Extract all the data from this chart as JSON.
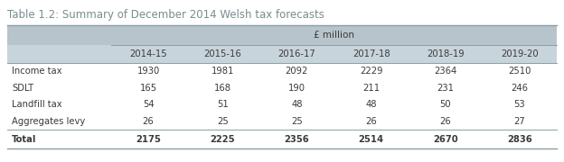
{
  "title": "Table 1.2: Summary of December 2014 Welsh tax forecasts",
  "unit_label": "£ million",
  "columns": [
    "",
    "2014-15",
    "2015-16",
    "2016-17",
    "2017-18",
    "2018-19",
    "2019-20"
  ],
  "rows": [
    [
      "Income tax",
      "1930",
      "1981",
      "2092",
      "2229",
      "2364",
      "2510"
    ],
    [
      "SDLT",
      "165",
      "168",
      "190",
      "211",
      "231",
      "246"
    ],
    [
      "Landfill tax",
      "54",
      "51",
      "48",
      "48",
      "50",
      "53"
    ],
    [
      "Aggregates levy",
      "26",
      "25",
      "25",
      "26",
      "26",
      "27"
    ],
    [
      "Total",
      "2175",
      "2225",
      "2356",
      "2514",
      "2670",
      "2836"
    ]
  ],
  "bg_color": "#f0f0f0",
  "header_bg": "#b8c4cc",
  "header2_bg": "#c8d4db",
  "total_bold": true,
  "title_color": "#7a8c8e",
  "body_text_color": "#3a3a3a",
  "border_color": "#8a9ea5",
  "outer_bg": "#ffffff"
}
